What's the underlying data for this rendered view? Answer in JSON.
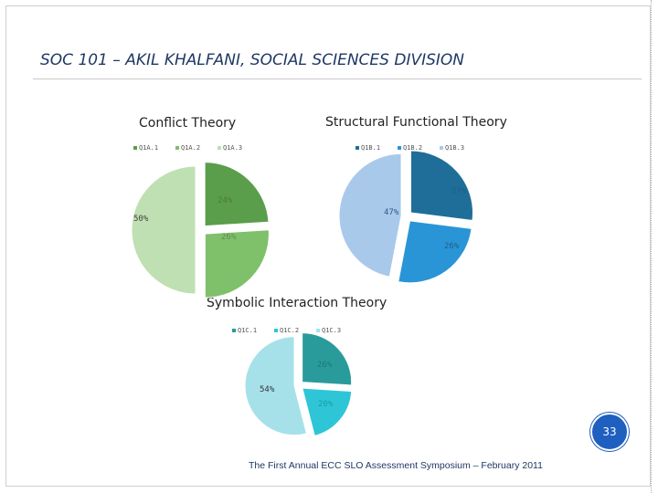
{
  "slide": {
    "title": "SOC 101 – AKIL KHALFANI, SOCIAL SCIENCES DIVISION",
    "page_number": "33",
    "footer": "The First Annual ECC SLO Assessment Symposium – February 2011"
  },
  "chart_data": [
    {
      "type": "pie",
      "title": "Conflict Theory",
      "categories": [
        "Q1A.1",
        "Q1A.2",
        "Q1A.3"
      ],
      "values": [
        24,
        26,
        50
      ],
      "labels": [
        "24%",
        "26%",
        "50%"
      ],
      "colors": [
        "#5a9e4b",
        "#7fc06b",
        "#bfe0b2"
      ],
      "legend": "top"
    },
    {
      "type": "pie",
      "title": "Structural Functional Theory",
      "categories": [
        "Q1B.1",
        "Q1B.2",
        "Q1B.3"
      ],
      "values": [
        27,
        26,
        47
      ],
      "labels": [
        "27%",
        "26%",
        "47%"
      ],
      "colors": [
        "#1f6e99",
        "#2a95d6",
        "#a9c9ea"
      ],
      "legend": "top"
    },
    {
      "type": "pie",
      "title": "Symbolic Interaction Theory",
      "categories": [
        "Q1C.1",
        "Q1C.2",
        "Q1C.3"
      ],
      "values": [
        26,
        20,
        54
      ],
      "labels": [
        "26%",
        "20%",
        "54%"
      ],
      "colors": [
        "#2a9b9b",
        "#2ec6d6",
        "#a6e1ea"
      ],
      "legend": "top"
    }
  ]
}
